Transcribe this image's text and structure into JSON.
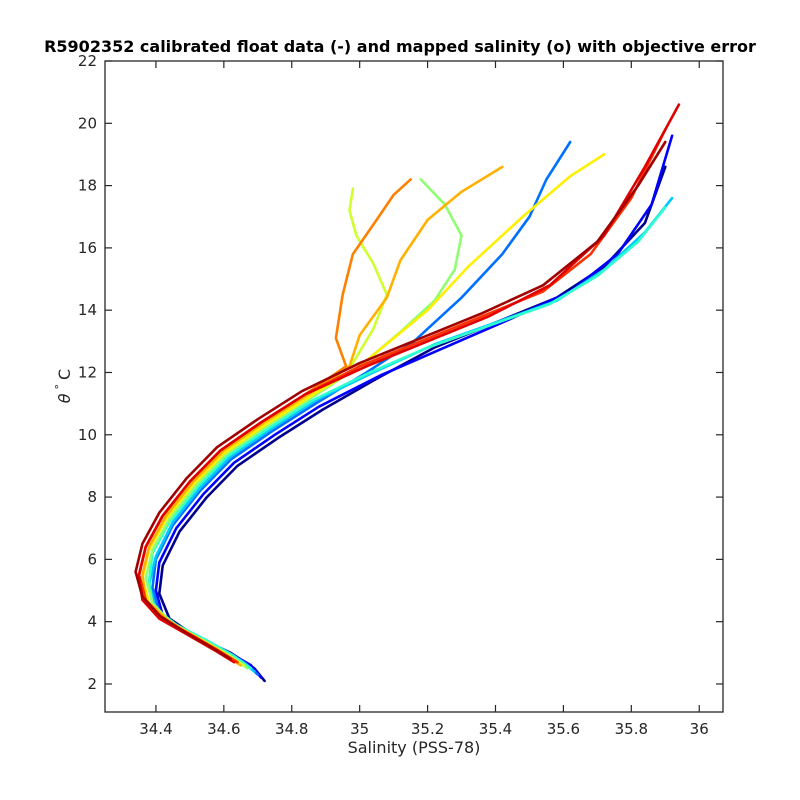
{
  "chart_data": {
    "type": "line",
    "title": "R5902352 calibrated float data (-) and mapped salinity (o) with objective error",
    "xlabel": "Salinity (PSS-78)",
    "ylabel_symbol": "θ",
    "ylabel_degree": "°",
    "ylabel_unit": "C",
    "xlim": [
      34.25,
      36.07
    ],
    "ylim": [
      1.1,
      22
    ],
    "x_ticks": [
      34.4,
      34.6,
      34.8,
      35,
      35.2,
      35.4,
      35.6,
      35.8,
      36
    ],
    "x_tick_labels": [
      "34.4",
      "34.6",
      "34.8",
      "35",
      "35.2",
      "35.4",
      "35.6",
      "35.8",
      "36"
    ],
    "y_ticks": [
      2,
      4,
      6,
      8,
      10,
      12,
      14,
      16,
      18,
      20,
      22
    ],
    "y_tick_labels": [
      "2",
      "4",
      "6",
      "8",
      "10",
      "12",
      "14",
      "16",
      "18",
      "20",
      "22"
    ],
    "grid": false,
    "legend": "none",
    "colormap": "jet",
    "series_colors": [
      "#00008f",
      "#0000ff",
      "#0070ff",
      "#00c8ff",
      "#2fffcf",
      "#8fff6f",
      "#cfff2f",
      "#ffef00",
      "#ffb000",
      "#ff8000",
      "#ff3000",
      "#e00000",
      "#a00000"
    ],
    "series": [
      {
        "x": [
          34.72,
          34.69,
          34.62,
          34.52,
          34.44,
          34.41,
          34.42,
          34.47,
          34.55,
          34.64,
          34.76,
          34.89,
          35.05,
          35.22,
          35.4,
          35.58,
          35.72,
          35.84,
          35.9
        ],
        "y": [
          2.1,
          2.5,
          3.0,
          3.5,
          4.1,
          4.9,
          5.8,
          6.9,
          8.0,
          9.0,
          9.9,
          10.8,
          11.8,
          12.8,
          13.6,
          14.4,
          15.4,
          16.8,
          18.6
        ]
      },
      {
        "x": [
          34.71,
          34.68,
          34.6,
          34.5,
          34.42,
          34.4,
          34.41,
          34.46,
          34.54,
          34.63,
          34.75,
          34.88,
          35.06,
          35.25,
          35.44,
          35.62,
          35.76,
          35.86,
          35.92
        ],
        "y": [
          2.2,
          2.6,
          3.1,
          3.6,
          4.2,
          5.0,
          5.9,
          7.0,
          8.1,
          9.1,
          10.0,
          10.9,
          11.9,
          12.8,
          13.7,
          14.6,
          15.8,
          17.4,
          19.6
        ]
      },
      {
        "x": [
          34.7,
          34.66,
          34.58,
          34.48,
          34.41,
          34.39,
          34.4,
          34.45,
          34.53,
          34.62,
          34.74,
          34.87,
          35.02,
          35.16,
          35.3,
          35.42,
          35.5,
          35.55,
          35.62
        ],
        "y": [
          2.3,
          2.7,
          3.2,
          3.7,
          4.3,
          5.1,
          6.0,
          7.1,
          8.2,
          9.2,
          10.1,
          11.0,
          12.0,
          13.0,
          14.4,
          15.8,
          17.0,
          18.2,
          19.4
        ]
      },
      {
        "x": [
          34.69,
          34.64,
          34.56,
          34.47,
          34.4,
          34.38,
          34.4,
          34.45,
          34.53,
          34.62,
          34.74,
          34.87,
          35.04,
          35.22,
          35.4,
          35.58,
          35.72,
          35.84,
          35.92
        ],
        "y": [
          2.4,
          2.8,
          3.3,
          3.8,
          4.4,
          5.2,
          6.1,
          7.2,
          8.3,
          9.3,
          10.2,
          11.1,
          12.0,
          12.9,
          13.6,
          14.3,
          15.3,
          16.5,
          17.6
        ]
      },
      {
        "x": [
          34.68,
          34.63,
          34.55,
          34.46,
          34.39,
          34.38,
          34.39,
          34.44,
          34.52,
          34.61,
          34.73,
          34.86,
          35.03,
          35.2,
          35.38,
          35.56,
          35.7,
          35.82,
          35.9
        ],
        "y": [
          2.5,
          2.9,
          3.4,
          3.9,
          4.5,
          5.3,
          6.2,
          7.2,
          8.3,
          9.3,
          10.2,
          11.1,
          12.0,
          12.8,
          13.5,
          14.2,
          15.1,
          16.2,
          17.3
        ]
      },
      {
        "x": [
          34.67,
          34.62,
          34.54,
          34.45,
          34.39,
          34.37,
          34.39,
          34.44,
          34.52,
          34.61,
          34.73,
          34.86,
          35.0,
          35.12,
          35.22,
          35.28,
          35.3,
          35.25,
          35.18
        ],
        "y": [
          2.5,
          2.9,
          3.4,
          3.9,
          4.6,
          5.4,
          6.3,
          7.3,
          8.4,
          9.4,
          10.3,
          11.2,
          12.2,
          13.3,
          14.3,
          15.3,
          16.4,
          17.4,
          18.2
        ]
      },
      {
        "x": [
          34.66,
          34.6,
          34.52,
          34.44,
          34.38,
          34.36,
          34.38,
          34.43,
          34.51,
          34.6,
          34.72,
          34.85,
          34.98,
          35.04,
          35.08,
          35.04,
          34.99,
          34.97,
          34.98
        ],
        "y": [
          2.6,
          3.0,
          3.5,
          4.0,
          4.6,
          5.4,
          6.3,
          7.3,
          8.4,
          9.4,
          10.3,
          11.2,
          12.3,
          13.4,
          14.5,
          15.5,
          16.4,
          17.2,
          17.9
        ]
      },
      {
        "x": [
          34.65,
          34.6,
          34.52,
          34.44,
          34.38,
          34.36,
          34.38,
          34.43,
          34.51,
          34.6,
          34.72,
          34.85,
          35.0,
          35.1,
          35.2,
          35.32,
          35.48,
          35.62,
          35.72
        ],
        "y": [
          2.6,
          3.0,
          3.5,
          4.0,
          4.6,
          5.4,
          6.3,
          7.3,
          8.4,
          9.4,
          10.3,
          11.2,
          12.2,
          13.1,
          14.0,
          15.4,
          17.0,
          18.3,
          19.0
        ]
      },
      {
        "x": [
          34.65,
          34.59,
          34.51,
          34.43,
          34.37,
          34.36,
          34.38,
          34.43,
          34.51,
          34.6,
          34.72,
          34.85,
          34.97,
          35.0,
          35.08,
          35.12,
          35.2,
          35.3,
          35.42
        ],
        "y": [
          2.6,
          3.0,
          3.5,
          4.1,
          4.7,
          5.5,
          6.4,
          7.4,
          8.5,
          9.5,
          10.4,
          11.3,
          12.2,
          13.2,
          14.4,
          15.6,
          16.9,
          17.8,
          18.6
        ]
      },
      {
        "x": [
          34.64,
          34.58,
          34.5,
          34.42,
          34.37,
          34.35,
          34.37,
          34.42,
          34.5,
          34.59,
          34.71,
          34.84,
          34.96,
          34.93,
          34.95,
          34.98,
          35.05,
          35.1,
          35.15
        ],
        "y": [
          2.7,
          3.1,
          3.6,
          4.1,
          4.7,
          5.5,
          6.4,
          7.4,
          8.5,
          9.5,
          10.4,
          11.3,
          12.2,
          13.1,
          14.5,
          15.8,
          16.9,
          17.7,
          18.2
        ]
      },
      {
        "x": [
          34.64,
          34.58,
          34.5,
          34.42,
          34.37,
          34.35,
          34.37,
          34.42,
          34.5,
          34.59,
          34.71,
          34.84,
          35.0,
          35.18,
          35.36,
          35.54,
          35.68,
          35.8,
          35.9
        ],
        "y": [
          2.7,
          3.1,
          3.6,
          4.1,
          4.7,
          5.5,
          6.4,
          7.4,
          8.5,
          9.5,
          10.4,
          11.3,
          12.2,
          13.0,
          13.8,
          14.6,
          15.8,
          17.6,
          19.8
        ]
      },
      {
        "x": [
          34.63,
          34.57,
          34.49,
          34.41,
          34.36,
          34.35,
          34.37,
          34.42,
          34.5,
          34.59,
          34.71,
          34.84,
          35.02,
          35.2,
          35.38,
          35.56,
          35.72,
          35.84,
          35.94
        ],
        "y": [
          2.7,
          3.1,
          3.6,
          4.1,
          4.7,
          5.5,
          6.4,
          7.4,
          8.5,
          9.5,
          10.4,
          11.3,
          12.2,
          13.0,
          13.8,
          14.8,
          16.4,
          18.6,
          20.6
        ]
      },
      {
        "x": [
          34.62,
          34.56,
          34.48,
          34.41,
          34.36,
          34.34,
          34.36,
          34.41,
          34.49,
          34.58,
          34.7,
          34.83,
          35.0,
          35.18,
          35.36,
          35.54,
          35.7,
          35.82,
          35.9
        ],
        "y": [
          2.8,
          3.2,
          3.7,
          4.2,
          4.8,
          5.6,
          6.5,
          7.5,
          8.6,
          9.6,
          10.5,
          11.4,
          12.3,
          13.1,
          13.9,
          14.8,
          16.2,
          18.0,
          19.4
        ]
      }
    ]
  }
}
